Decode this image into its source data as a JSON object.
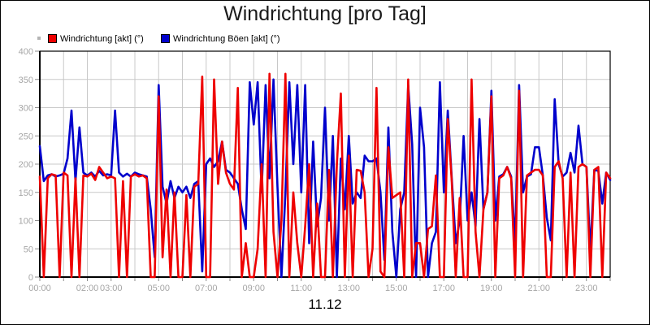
{
  "window": {
    "title": "Windrichtung [pro Tag]",
    "date_label": "11.12"
  },
  "legend": {
    "misc_marker_color": "#b4b4b4",
    "items": [
      {
        "label": "Windrichtung [akt] (°)",
        "color": "#ee0000"
      },
      {
        "label": "Windrichtung Böen [akt] (°)",
        "color": "#0000cc"
      }
    ]
  },
  "axes": {
    "y_tick_labels": [
      "0",
      "50",
      "100",
      "150",
      "200",
      "250",
      "300",
      "350",
      "400"
    ],
    "x_tick_labels": [
      {
        "hour": 0,
        "label": "00:00"
      },
      {
        "hour": 2,
        "label": "02:00"
      },
      {
        "hour": 3,
        "label": "03:00"
      },
      {
        "hour": 5,
        "label": "05:00"
      },
      {
        "hour": 7,
        "label": "07:00"
      },
      {
        "hour": 9,
        "label": "09:00"
      },
      {
        "hour": 11,
        "label": "11:00"
      },
      {
        "hour": 13,
        "label": "13:00"
      },
      {
        "hour": 15,
        "label": "15:00"
      },
      {
        "hour": 17,
        "label": "17:00"
      },
      {
        "hour": 19,
        "label": "19:00"
      },
      {
        "hour": 21,
        "label": "21:00"
      },
      {
        "hour": 23,
        "label": "23:00"
      }
    ],
    "tick_color": "#8c8c8c",
    "label_color": "#a6a6a6",
    "grid_color": "#c8c8c8",
    "axis_color": "#000000"
  },
  "chart_data": {
    "type": "line",
    "title": "Windrichtung [pro Tag]",
    "xlabel": "11.12",
    "ylabel": "",
    "x_unit": "hour_of_day",
    "xlim": [
      0,
      24
    ],
    "ylim": [
      0,
      400
    ],
    "y_tick_step": 50,
    "x_grid_every_hours": 1,
    "x_step_minutes": 10,
    "grid": true,
    "legend_position": "top-left",
    "series": [
      {
        "name": "Windrichtung [akt] (°)",
        "color": "#ee0000",
        "values": [
          178,
          0,
          175,
          182,
          180,
          0,
          185,
          180,
          0,
          175,
          0,
          180,
          178,
          183,
          172,
          195,
          185,
          175,
          178,
          175,
          0,
          170,
          0,
          178,
          182,
          178,
          180,
          175,
          0,
          0,
          320,
          35,
          155,
          0,
          150,
          0,
          0,
          145,
          0,
          160,
          165,
          355,
          0,
          0,
          350,
          165,
          240,
          185,
          165,
          155,
          335,
          0,
          60,
          0,
          0,
          50,
          200,
          0,
          360,
          80,
          0,
          100,
          360,
          0,
          150,
          60,
          0,
          90,
          200,
          0,
          130,
          0,
          0,
          190,
          0,
          200,
          325,
          0,
          215,
          0,
          190,
          188,
          150,
          0,
          50,
          335,
          10,
          0,
          230,
          140,
          145,
          150,
          0,
          350,
          0,
          60,
          60,
          0,
          85,
          90,
          180,
          0,
          0,
          280,
          170,
          0,
          140,
          0,
          0,
          350,
          80,
          0,
          120,
          150,
          320,
          0,
          175,
          180,
          195,
          175,
          0,
          330,
          0,
          180,
          185,
          190,
          190,
          180,
          0,
          0,
          195,
          205,
          175,
          0,
          185,
          0,
          195,
          200,
          195,
          0,
          190,
          195,
          0,
          185,
          175
        ]
      },
      {
        "name": "Windrichtung Böen [akt] (°)",
        "color": "#0000cc",
        "values": [
          232,
          170,
          180,
          182,
          178,
          180,
          183,
          210,
          295,
          170,
          265,
          185,
          180,
          185,
          178,
          188,
          180,
          182,
          180,
          295,
          185,
          178,
          183,
          178,
          185,
          182,
          180,
          178,
          120,
          35,
          340,
          160,
          130,
          170,
          140,
          160,
          150,
          160,
          140,
          165,
          170,
          10,
          200,
          210,
          195,
          205,
          240,
          190,
          185,
          175,
          165,
          120,
          85,
          345,
          270,
          345,
          150,
          340,
          175,
          350,
          160,
          0,
          150,
          345,
          200,
          340,
          150,
          340,
          60,
          240,
          90,
          140,
          300,
          100,
          250,
          0,
          210,
          120,
          250,
          130,
          150,
          140,
          215,
          205,
          205,
          210,
          150,
          30,
          265,
          80,
          0,
          120,
          150,
          340,
          235,
          0,
          300,
          230,
          0,
          60,
          80,
          345,
          150,
          295,
          175,
          60,
          100,
          250,
          100,
          150,
          90,
          280,
          120,
          150,
          330,
          100,
          178,
          182,
          195,
          178,
          60,
          340,
          150,
          178,
          182,
          230,
          230,
          180,
          105,
          65,
          315,
          200,
          178,
          185,
          220,
          185,
          268,
          200,
          195,
          45,
          190,
          188,
          130,
          185,
          172
        ]
      }
    ]
  }
}
